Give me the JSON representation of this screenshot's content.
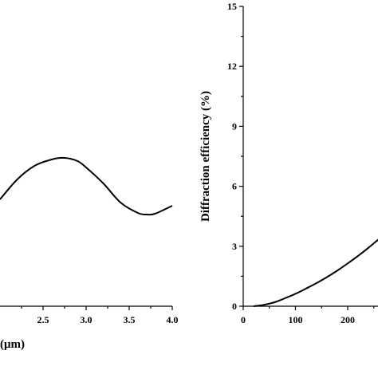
{
  "chart_data": [
    {
      "type": "line",
      "title": "",
      "xlabel": "(μm)",
      "ylabel": "",
      "xlim": [
        2.0,
        4.0
      ],
      "x_ticks": [
        "2.5",
        "3.0",
        "3.5",
        "4.0"
      ],
      "series": [
        {
          "x": [
            2.0,
            2.2,
            2.4,
            2.6,
            2.75,
            2.9,
            3.0,
            3.2,
            3.4,
            3.6,
            3.7,
            3.8,
            4.0
          ],
          "y": [
            0.5,
            0.75,
            0.92,
            1.0,
            1.02,
            0.98,
            0.9,
            0.7,
            0.46,
            0.33,
            0.31,
            0.32,
            0.42
          ]
        }
      ]
    },
    {
      "type": "line",
      "title": "",
      "xlabel": "",
      "ylabel": "Diffraction efficiency (%)",
      "xlim": [
        0,
        280
      ],
      "ylim": [
        0,
        15
      ],
      "x_ticks": [
        "0",
        "100",
        "200"
      ],
      "y_ticks": [
        "0",
        "3",
        "6",
        "9",
        "12",
        "15"
      ],
      "series": [
        {
          "x": [
            20,
            40,
            60,
            80,
            100,
            120,
            140,
            160,
            180,
            200,
            220,
            240,
            260,
            280
          ],
          "y": [
            0,
            0.07,
            0.2,
            0.4,
            0.62,
            0.88,
            1.15,
            1.45,
            1.78,
            2.14,
            2.52,
            2.93,
            3.37,
            3.84
          ]
        }
      ]
    }
  ]
}
